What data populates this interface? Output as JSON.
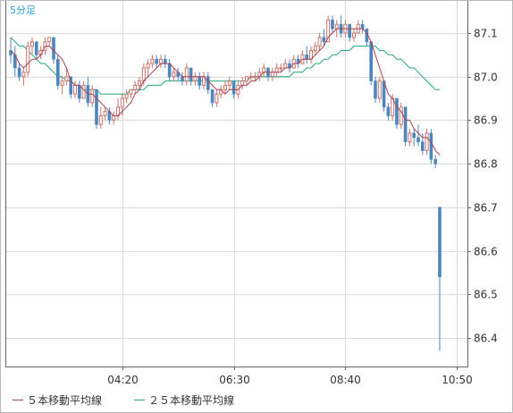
{
  "chart_data": {
    "type": "candlestick",
    "period_label": "5分足",
    "y_ticks": [
      "87.1",
      "87.0",
      "86.9",
      "86.8",
      "86.7",
      "86.6",
      "86.5",
      "86.4"
    ],
    "ylim": [
      86.36,
      87.195
    ],
    "x_ticks": [
      {
        "label": "04:20",
        "index": 26
      },
      {
        "label": "06:30",
        "index": 52
      },
      {
        "label": "08:40",
        "index": 78
      },
      {
        "label": "10:50",
        "index": 104
      }
    ],
    "colors": {
      "up": "#c8746c",
      "down": "#4d86bd",
      "ma5": "#a8404f",
      "ma25": "#24a67c",
      "grid": "#d9d9d9",
      "axis": "#666666"
    },
    "legend": [
      {
        "label": "５本移動平均線",
        "color": "#a8404f"
      },
      {
        "label": "２５本移動平均線",
        "color": "#24a67c"
      }
    ],
    "ohlc": [
      [
        87.06,
        87.09,
        87.03,
        87.05
      ],
      [
        87.05,
        87.07,
        87.0,
        87.02
      ],
      [
        87.02,
        87.03,
        86.99,
        87.0
      ],
      [
        87.0,
        87.02,
        86.98,
        87.01
      ],
      [
        87.01,
        87.08,
        87.0,
        87.07
      ],
      [
        87.07,
        87.09,
        87.05,
        87.08
      ],
      [
        87.08,
        87.08,
        87.04,
        87.05
      ],
      [
        87.05,
        87.07,
        87.04,
        87.06
      ],
      [
        87.06,
        87.09,
        87.05,
        87.08
      ],
      [
        87.08,
        87.09,
        87.07,
        87.09
      ],
      [
        87.09,
        87.09,
        87.03,
        87.04
      ],
      [
        87.04,
        87.05,
        86.97,
        86.98
      ],
      [
        86.98,
        87.0,
        86.96,
        86.99
      ],
      [
        86.99,
        87.02,
        86.98,
        87.0
      ],
      [
        87.0,
        87.0,
        86.95,
        86.96
      ],
      [
        86.96,
        86.99,
        86.95,
        86.98
      ],
      [
        86.98,
        86.99,
        86.94,
        86.95
      ],
      [
        86.95,
        86.99,
        86.95,
        86.98
      ],
      [
        86.98,
        87.0,
        86.93,
        86.94
      ],
      [
        86.94,
        86.98,
        86.93,
        86.97
      ],
      [
        86.97,
        86.97,
        86.88,
        86.89
      ],
      [
        86.89,
        86.93,
        86.88,
        86.91
      ],
      [
        86.91,
        86.93,
        86.9,
        86.92
      ],
      [
        86.92,
        86.93,
        86.89,
        86.9
      ],
      [
        86.9,
        86.92,
        86.89,
        86.91
      ],
      [
        86.91,
        86.95,
        86.9,
        86.93
      ],
      [
        86.93,
        86.96,
        86.91,
        86.95
      ],
      [
        86.95,
        86.97,
        86.94,
        86.96
      ],
      [
        86.96,
        86.97,
        86.95,
        86.97
      ],
      [
        86.97,
        86.99,
        86.96,
        86.98
      ],
      [
        86.98,
        87.0,
        86.97,
        86.99
      ],
      [
        86.99,
        87.03,
        86.98,
        87.02
      ],
      [
        87.02,
        87.04,
        87.0,
        87.03
      ],
      [
        87.03,
        87.05,
        87.02,
        87.04
      ],
      [
        87.04,
        87.05,
        87.02,
        87.03
      ],
      [
        87.03,
        87.05,
        87.02,
        87.04
      ],
      [
        87.04,
        87.05,
        87.02,
        87.03
      ],
      [
        87.03,
        87.04,
        86.99,
        87.0
      ],
      [
        87.0,
        87.02,
        86.99,
        87.01
      ],
      [
        87.01,
        87.02,
        86.99,
        87.0
      ],
      [
        87.0,
        87.01,
        86.98,
        86.99
      ],
      [
        86.99,
        87.03,
        86.98,
        87.02
      ],
      [
        87.02,
        87.02,
        86.98,
        86.99
      ],
      [
        86.99,
        87.01,
        86.98,
        87.0
      ],
      [
        87.0,
        87.01,
        86.97,
        86.98
      ],
      [
        86.98,
        87.01,
        86.97,
        87.0
      ],
      [
        87.0,
        87.01,
        86.96,
        86.97
      ],
      [
        86.97,
        86.97,
        86.93,
        86.94
      ],
      [
        86.94,
        86.97,
        86.93,
        86.96
      ],
      [
        86.96,
        86.98,
        86.95,
        86.97
      ],
      [
        86.97,
        86.99,
        86.96,
        86.98
      ],
      [
        86.98,
        87.0,
        86.97,
        86.99
      ],
      [
        86.99,
        86.99,
        86.95,
        86.96
      ],
      [
        86.96,
        86.99,
        86.95,
        86.98
      ],
      [
        86.98,
        87.0,
        86.97,
        86.99
      ],
      [
        86.99,
        87.0,
        86.98,
        87.0
      ],
      [
        87.0,
        87.01,
        86.99,
        87.0
      ],
      [
        87.0,
        87.01,
        86.99,
        87.0
      ],
      [
        87.0,
        87.02,
        86.99,
        87.01
      ],
      [
        87.01,
        87.03,
        87.0,
        87.02
      ],
      [
        87.02,
        87.02,
        86.99,
        87.0
      ],
      [
        87.0,
        87.02,
        86.99,
        87.01
      ],
      [
        87.01,
        87.03,
        87.0,
        87.02
      ],
      [
        87.02,
        87.03,
        87.01,
        87.02
      ],
      [
        87.02,
        87.04,
        87.02,
        87.03
      ],
      [
        87.03,
        87.04,
        87.01,
        87.02
      ],
      [
        87.02,
        87.05,
        87.02,
        87.04
      ],
      [
        87.04,
        87.05,
        87.02,
        87.03
      ],
      [
        87.03,
        87.06,
        87.03,
        87.05
      ],
      [
        87.05,
        87.07,
        87.03,
        87.04
      ],
      [
        87.04,
        87.07,
        87.03,
        87.06
      ],
      [
        87.06,
        87.08,
        87.05,
        87.07
      ],
      [
        87.07,
        87.1,
        87.06,
        87.09
      ],
      [
        87.09,
        87.11,
        87.07,
        87.08
      ],
      [
        87.08,
        87.14,
        87.08,
        87.13
      ],
      [
        87.13,
        87.14,
        87.1,
        87.11
      ],
      [
        87.11,
        87.13,
        87.09,
        87.12
      ],
      [
        87.12,
        87.14,
        87.09,
        87.1
      ],
      [
        87.1,
        87.13,
        87.09,
        87.12
      ],
      [
        87.12,
        87.12,
        87.08,
        87.09
      ],
      [
        87.09,
        87.11,
        87.08,
        87.1
      ],
      [
        87.1,
        87.13,
        87.1,
        87.12
      ],
      [
        87.12,
        87.13,
        87.1,
        87.11
      ],
      [
        87.11,
        87.11,
        87.07,
        87.08
      ],
      [
        87.08,
        87.08,
        86.98,
        86.99
      ],
      [
        86.99,
        87.0,
        86.94,
        86.95
      ],
      [
        86.95,
        87.0,
        86.94,
        86.99
      ],
      [
        86.99,
        86.99,
        86.92,
        86.93
      ],
      [
        86.93,
        86.94,
        86.9,
        86.91
      ],
      [
        86.91,
        86.96,
        86.9,
        86.95
      ],
      [
        86.95,
        86.95,
        86.88,
        86.89
      ],
      [
        86.89,
        86.94,
        86.88,
        86.93
      ],
      [
        86.93,
        86.93,
        86.84,
        86.85
      ],
      [
        86.85,
        86.88,
        86.84,
        86.87
      ],
      [
        86.87,
        86.88,
        86.84,
        86.86
      ],
      [
        86.86,
        86.89,
        86.84,
        86.85
      ],
      [
        86.85,
        86.87,
        86.82,
        86.83
      ],
      [
        86.83,
        86.88,
        86.82,
        86.87
      ],
      [
        86.87,
        86.88,
        86.8,
        86.81
      ],
      [
        86.81,
        86.82,
        86.79,
        86.8
      ],
      [
        86.7,
        86.7,
        86.37,
        86.54
      ]
    ],
    "ma5": [
      87.06,
      87.05,
      87.03,
      87.02,
      87.03,
      87.04,
      87.04,
      87.05,
      87.07,
      87.07,
      87.06,
      87.05,
      87.04,
      87.02,
      86.99,
      86.98,
      86.98,
      86.97,
      86.96,
      86.96,
      86.95,
      86.94,
      86.93,
      86.92,
      86.91,
      86.91,
      86.92,
      86.93,
      86.94,
      86.96,
      86.97,
      86.99,
      87.0,
      87.01,
      87.02,
      87.03,
      87.03,
      87.03,
      87.02,
      87.01,
      87.0,
      87.0,
      87.0,
      87.0,
      87.0,
      87.0,
      86.99,
      86.98,
      86.97,
      86.97,
      86.96,
      86.97,
      86.97,
      86.97,
      86.98,
      86.98,
      86.99,
      86.99,
      87.0,
      87.01,
      87.01,
      87.01,
      87.01,
      87.01,
      87.02,
      87.02,
      87.03,
      87.03,
      87.04,
      87.04,
      87.04,
      87.05,
      87.06,
      87.07,
      87.09,
      87.1,
      87.11,
      87.11,
      87.11,
      87.11,
      87.11,
      87.11,
      87.11,
      87.1,
      87.08,
      87.05,
      87.02,
      86.99,
      86.96,
      86.95,
      86.93,
      86.92,
      86.9,
      86.9,
      86.88,
      86.87,
      86.86,
      86.86,
      86.85,
      86.83,
      86.82
    ],
    "ma25": [
      87.09,
      87.08,
      87.07,
      87.07,
      87.06,
      87.05,
      87.04,
      87.03,
      87.03,
      87.02,
      87.01,
      87.0,
      87.0,
      86.99,
      86.99,
      86.98,
      86.98,
      86.97,
      86.97,
      86.97,
      86.97,
      86.96,
      86.96,
      86.96,
      86.96,
      86.96,
      86.96,
      86.96,
      86.97,
      86.97,
      86.97,
      86.97,
      86.98,
      86.98,
      86.98,
      86.98,
      86.99,
      86.99,
      86.99,
      86.99,
      86.99,
      86.99,
      86.99,
      86.99,
      86.99,
      86.99,
      86.99,
      86.99,
      86.99,
      86.99,
      86.99,
      86.99,
      86.99,
      86.99,
      86.99,
      86.99,
      87.0,
      87.0,
      87.0,
      87.0,
      87.0,
      87.0,
      87.0,
      87.0,
      87.0,
      87.0,
      87.01,
      87.01,
      87.01,
      87.02,
      87.02,
      87.03,
      87.03,
      87.04,
      87.04,
      87.05,
      87.05,
      87.06,
      87.06,
      87.06,
      87.07,
      87.07,
      87.07,
      87.07,
      87.07,
      87.07,
      87.06,
      87.06,
      87.05,
      87.05,
      87.04,
      87.04,
      87.03,
      87.02,
      87.02,
      87.01,
      87.0,
      86.99,
      86.98,
      86.97,
      86.97
    ]
  }
}
